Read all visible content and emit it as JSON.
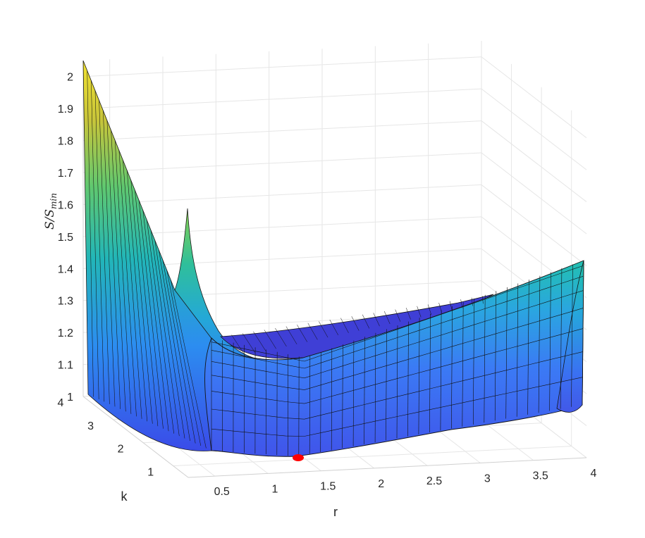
{
  "chart_data": {
    "type": "surface",
    "zlabel": "S/S",
    "zlabel_subscript": "min",
    "xlabel": "r",
    "ylabel": "k",
    "xlim": [
      0.25,
      4
    ],
    "ylim": [
      0.5,
      4
    ],
    "zlim": [
      1,
      2.05
    ],
    "x_ticks": [
      "0.5",
      "1",
      "1.5",
      "2",
      "2.5",
      "3",
      "3.5",
      "4"
    ],
    "y_ticks": [
      "1",
      "2",
      "3",
      "4"
    ],
    "z_ticks": [
      "1",
      "1.1",
      "1.2",
      "1.3",
      "1.4",
      "1.5",
      "1.6",
      "1.7",
      "1.8",
      "1.9",
      "2"
    ],
    "grid": true,
    "colormap": "parula",
    "colormap_stops": [
      "#3e26a8",
      "#4662f6",
      "#2d9bf0",
      "#20c0b0",
      "#6dcc60",
      "#d0c030",
      "#f5e425"
    ],
    "minimum_marker": {
      "r": 1.0,
      "k": 1.0,
      "value": 1.0,
      "color": "#ff0000"
    },
    "surface_edges": {
      "left_k_max": [
        [
          0.25,
          2.05
        ],
        [
          0.4,
          1.7
        ],
        [
          0.6,
          1.42
        ],
        [
          0.8,
          1.15
        ],
        [
          1.0,
          1.03
        ],
        [
          1.2,
          1.0
        ],
        [
          1.5,
          1.02
        ],
        [
          2.0,
          1.06
        ],
        [
          3.0,
          1.12
        ],
        [
          4.0,
          1.18
        ]
      ],
      "front_k_min": [
        [
          0.25,
          1.58
        ],
        [
          0.35,
          1.4
        ],
        [
          0.5,
          1.2
        ],
        [
          0.7,
          1.08
        ],
        [
          1.0,
          1.01
        ],
        [
          1.5,
          1.01
        ],
        [
          2.0,
          1.04
        ],
        [
          3.0,
          1.11
        ],
        [
          4.0,
          1.18
        ]
      ],
      "back_r_max": [
        [
          0.5,
          1.18
        ],
        [
          1.0,
          1.25
        ],
        [
          2.0,
          1.35
        ],
        [
          3.0,
          1.4
        ],
        [
          4.0,
          1.44
        ]
      ]
    }
  }
}
